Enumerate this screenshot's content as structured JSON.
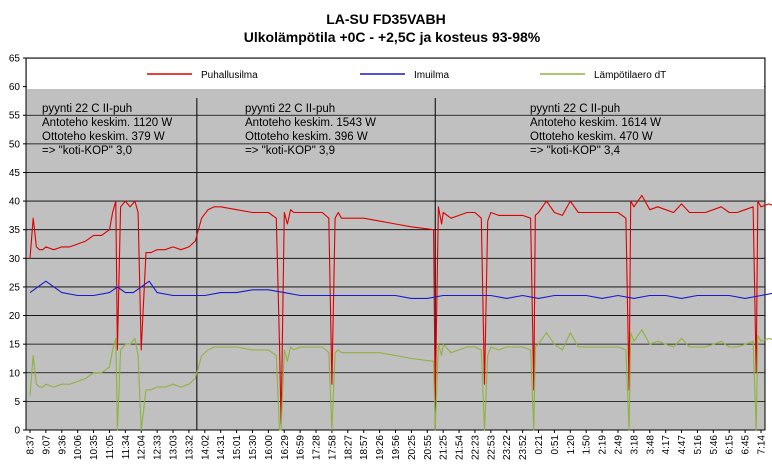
{
  "chart_data": {
    "type": "line",
    "title": "LA-SU FD35VABH",
    "subtitle": "Ulkolämpötila +0C - +2,5C ja kosteus 93-98%",
    "ylim": [
      0,
      65
    ],
    "yticks": [
      0,
      5,
      10,
      15,
      20,
      25,
      30,
      35,
      40,
      45,
      50,
      55,
      60,
      65
    ],
    "grid": true,
    "legend_position": "top",
    "x_categories": [
      "8:37",
      "9:07",
      "9:36",
      "10:06",
      "10:35",
      "11:05",
      "11:34",
      "12:04",
      "12:33",
      "13:03",
      "13:32",
      "14:02",
      "14:31",
      "15:01",
      "15:30",
      "16:00",
      "16:29",
      "16:59",
      "17:28",
      "17:58",
      "18:27",
      "18:57",
      "19:26",
      "19:56",
      "20:25",
      "20:55",
      "21:25",
      "21:54",
      "22:23",
      "22:53",
      "23:22",
      "23:52",
      "0:21",
      "0:51",
      "1:20",
      "1:50",
      "2:19",
      "2:49",
      "3:18",
      "3:48",
      "4:17",
      "4:47",
      "5:16",
      "5:46",
      "6:15",
      "6:45",
      "7:14"
    ],
    "series": [
      {
        "name": "Puhallusilma",
        "color": "#dd0000",
        "x": [
          0,
          0.2,
          0.4,
          0.6,
          0.8,
          1,
          1.5,
          2,
          2.5,
          3,
          3.5,
          4,
          4.5,
          5,
          5.2,
          5.4,
          5.5,
          5.7,
          6,
          6.3,
          6.6,
          6.8,
          7,
          7.3,
          7.6,
          8,
          8.5,
          9,
          9.5,
          10,
          10.4,
          10.8,
          11.2,
          11.6,
          12,
          13,
          14,
          15,
          15.5,
          15.7,
          15.8,
          16,
          16.2,
          16.4,
          16.6,
          17,
          17.6,
          18,
          18.4,
          18.6,
          18.8,
          19,
          19.2,
          19.4,
          19.6,
          20,
          21,
          22,
          23,
          24,
          25.4,
          25.5,
          25.7,
          25.9,
          26,
          26.5,
          27,
          27.5,
          28,
          28.4,
          28.6,
          28.8,
          29,
          29.5,
          30,
          31,
          31.5,
          31.7,
          31.8,
          32,
          32.5,
          33,
          33.5,
          34,
          34.5,
          35,
          36,
          37,
          37.5,
          37.7,
          37.8,
          38,
          38.5,
          39,
          39.5,
          40,
          40.5,
          41,
          41.5,
          42,
          42.5,
          43,
          43.5,
          44,
          44.5,
          45,
          45.5,
          45.7,
          45.8,
          46,
          46.5,
          47
        ],
        "y": [
          30,
          37,
          32,
          31.5,
          31.5,
          32,
          31.5,
          32,
          32,
          32.5,
          33,
          34,
          34,
          35,
          38,
          40,
          14,
          39,
          40,
          39,
          40,
          38,
          14,
          31,
          31,
          31.5,
          31.5,
          32,
          31.5,
          32,
          33,
          37,
          38.5,
          39,
          39,
          38.5,
          38,
          38,
          37,
          15,
          1,
          38,
          36,
          38.5,
          38,
          38,
          38,
          38,
          38,
          37.5,
          37,
          8,
          37,
          38,
          37,
          37,
          37,
          36.5,
          36,
          35.5,
          35,
          5,
          39,
          36,
          38,
          37,
          37.5,
          38,
          38,
          37,
          8,
          36.5,
          38,
          37.5,
          37.5,
          37.5,
          37,
          7,
          37.5,
          38,
          40,
          38,
          37.5,
          40,
          38,
          38,
          38,
          38,
          37,
          7,
          40,
          39,
          41,
          38.5,
          39,
          38.5,
          38,
          39.5,
          38,
          38,
          38,
          38.5,
          39,
          38,
          38,
          38.5,
          39,
          10,
          40,
          39,
          39.5,
          39
        ]
      },
      {
        "name": "Imuilma",
        "color": "#1a1acc",
        "x": [
          0,
          1,
          2,
          3,
          4,
          5,
          5.5,
          6,
          6.5,
          7,
          7.5,
          8,
          9,
          10,
          11,
          12,
          13,
          14,
          15,
          16,
          17,
          18,
          19,
          20,
          21,
          22,
          23,
          24,
          25,
          26,
          27,
          28,
          29,
          30,
          31,
          32,
          33,
          34,
          35,
          36,
          37,
          38,
          39,
          40,
          41,
          42,
          43,
          44,
          45,
          46,
          47
        ],
        "y": [
          24,
          26,
          24,
          23.5,
          23.5,
          24,
          25,
          24,
          24,
          25,
          26,
          24,
          23.5,
          23.5,
          23.5,
          24,
          24,
          24.5,
          24.5,
          24,
          23.5,
          23.5,
          23.5,
          23.5,
          23.5,
          23.5,
          23.5,
          23,
          23,
          23.5,
          23.5,
          23.5,
          23.5,
          23,
          23.5,
          23,
          23.5,
          23.5,
          23.5,
          23,
          23.5,
          23,
          23.5,
          23.5,
          23,
          23.5,
          23.5,
          23.5,
          23,
          23.5,
          24
        ]
      },
      {
        "name": "Lämpötilaero dT",
        "color": "#8fb340",
        "x": [
          0,
          0.2,
          0.4,
          0.6,
          0.8,
          1,
          1.5,
          2,
          2.5,
          3,
          3.5,
          4,
          4.5,
          5,
          5.2,
          5.4,
          5.5,
          5.7,
          6,
          6.3,
          6.6,
          6.8,
          7,
          7.3,
          7.6,
          8,
          8.5,
          9,
          9.5,
          10,
          10.4,
          10.8,
          11.2,
          11.6,
          12,
          13,
          14,
          15,
          15.5,
          15.7,
          15.8,
          16,
          16.2,
          16.4,
          16.6,
          17,
          17.6,
          18,
          18.4,
          18.6,
          18.8,
          19,
          19.2,
          19.4,
          19.6,
          20,
          21,
          22,
          23,
          24,
          25.4,
          25.5,
          25.7,
          25.9,
          26,
          26.5,
          27,
          27.5,
          28,
          28.4,
          28.6,
          28.8,
          29,
          29.5,
          30,
          31,
          31.5,
          31.7,
          31.8,
          32,
          32.5,
          33,
          33.5,
          34,
          34.5,
          35,
          36,
          37,
          37.5,
          37.7,
          37.8,
          38,
          38.5,
          39,
          39.5,
          40,
          40.5,
          41,
          41.5,
          42,
          42.5,
          43,
          43.5,
          44,
          44.5,
          45,
          45.5,
          45.7,
          45.8,
          46,
          46.5,
          47
        ],
        "y": [
          6,
          13,
          8,
          7.5,
          7.5,
          8,
          7.5,
          8,
          8,
          8.5,
          9,
          10,
          10,
          11,
          14,
          16,
          0,
          14,
          15,
          15,
          16,
          13,
          0,
          7,
          7,
          7.5,
          7.5,
          8,
          7.5,
          8,
          9,
          13,
          14,
          14.5,
          14.5,
          14.5,
          14,
          14,
          13,
          0,
          0,
          14,
          12,
          14.5,
          14,
          14.5,
          14.5,
          14.5,
          14.5,
          14,
          13.5,
          0,
          13.5,
          14,
          13.5,
          13.5,
          13.5,
          13.5,
          13,
          12.5,
          12,
          0,
          15,
          13,
          15,
          13.5,
          14,
          14.5,
          14.5,
          14,
          0,
          13,
          14.5,
          14,
          14.5,
          14.5,
          14,
          0,
          14.5,
          15,
          17,
          15,
          14,
          17,
          14.5,
          14.5,
          14.5,
          14.5,
          14,
          0,
          17,
          15.5,
          17.5,
          15,
          15.5,
          15,
          14.5,
          16,
          14.5,
          14.5,
          14.5,
          15,
          15.5,
          14.5,
          14.5,
          15,
          15.5,
          0,
          16.5,
          15.5,
          16,
          15.5
        ]
      }
    ],
    "dividers_after_category": [
      10.5,
      25.5
    ],
    "annotations": [
      {
        "lines": [
          "pyynti 22 C II-puh",
          "Antoteho keskim. 1120 W",
          "Ottoteho keskim. 379 W",
          "=> \"koti-KOP\" 3,0"
        ]
      },
      {
        "lines": [
          "pyynti 22 C II-puh",
          "Antoteho keskim. 1543 W",
          "Ottoteho keskim. 396 W",
          "=> \"koti-KOP\" 3,9"
        ]
      },
      {
        "lines": [
          "pyynti 22 C II-puh",
          "Antoteho keskim. 1614 W",
          "Ottoteho keskim. 470 W",
          "=> \"koti-KOP\" 3,4"
        ]
      }
    ]
  }
}
